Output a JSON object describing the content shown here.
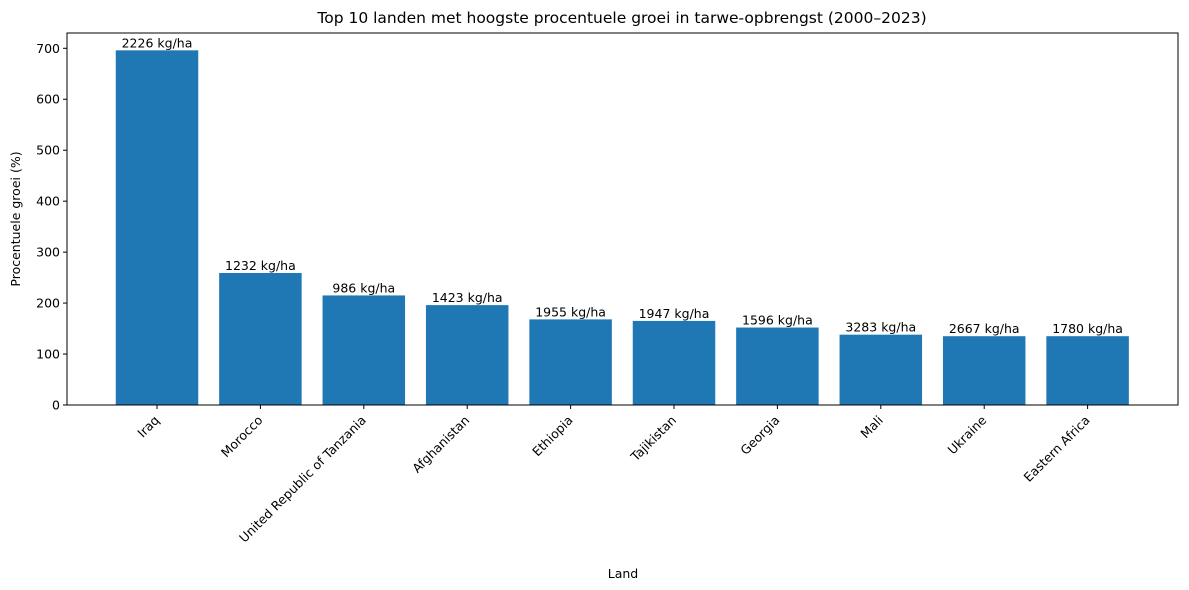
{
  "chart_data": {
    "type": "bar",
    "title": "Top 10 landen met hoogste procentuele groei in tarwe-opbrengst (2000–2023)",
    "xlabel": "Land",
    "ylabel": "Procentuele groei (%)",
    "ylim": [
      0,
      730
    ],
    "yticks": [
      "0",
      "100",
      "200",
      "300",
      "400",
      "500",
      "600",
      "700"
    ],
    "grid": false,
    "bar_color": "#1f77b4",
    "categories": [
      "Iraq",
      "Morocco",
      "United Republic of Tanzania",
      "Afghanistan",
      "Ethiopia",
      "Tajikistan",
      "Georgia",
      "Mali",
      "Ukraine",
      "Eastern Africa"
    ],
    "values": [
      696,
      259,
      215,
      196,
      168,
      165,
      152,
      138,
      135,
      135
    ],
    "bar_labels": [
      "2226 kg/ha",
      "1232 kg/ha",
      "986 kg/ha",
      "1423 kg/ha",
      "1955 kg/ha",
      "1947 kg/ha",
      "1596 kg/ha",
      "3283 kg/ha",
      "2667 kg/ha",
      "1780 kg/ha"
    ]
  }
}
